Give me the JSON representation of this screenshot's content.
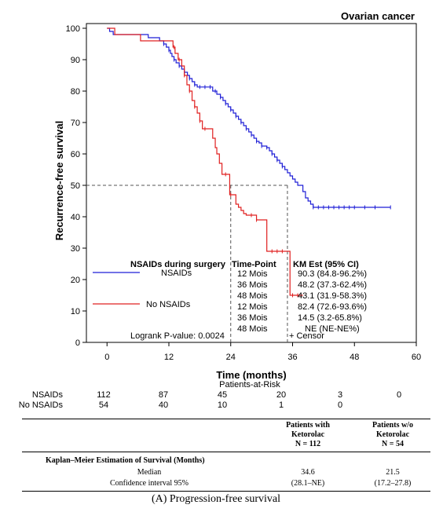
{
  "chart_data": {
    "type": "line",
    "subtype": "kaplan-meier-step",
    "title": "Ovarian cancer",
    "xlabel": "Time (months)",
    "ylabel": "Recurrence-free survival",
    "xlim": [
      -4,
      60
    ],
    "ylim": [
      0,
      100
    ],
    "x_ticks": [
      0,
      12,
      24,
      36,
      48,
      60
    ],
    "y_ticks": [
      0,
      10,
      20,
      30,
      40,
      50,
      60,
      70,
      80,
      90,
      100
    ],
    "grid": false,
    "series": [
      {
        "name": "NSAIDs",
        "color": "#1f1fd6",
        "points": [
          [
            0,
            100
          ],
          [
            0.5,
            99
          ],
          [
            1.2,
            98
          ],
          [
            8,
            97
          ],
          [
            10.2,
            96
          ],
          [
            11,
            95
          ],
          [
            11.5,
            94
          ],
          [
            12,
            93
          ],
          [
            12.3,
            92
          ],
          [
            12.6,
            91
          ],
          [
            13,
            90
          ],
          [
            13.4,
            89
          ],
          [
            14,
            88
          ],
          [
            14.5,
            87
          ],
          [
            15,
            86
          ],
          [
            15.6,
            85
          ],
          [
            16,
            84
          ],
          [
            16.5,
            83
          ],
          [
            17,
            82
          ],
          [
            17.5,
            81.3
          ],
          [
            20,
            81.3
          ],
          [
            20.5,
            80
          ],
          [
            21.3,
            79
          ],
          [
            22,
            78
          ],
          [
            22.5,
            77
          ],
          [
            23,
            76
          ],
          [
            23.5,
            75
          ],
          [
            24,
            74
          ],
          [
            24.5,
            73
          ],
          [
            25,
            72
          ],
          [
            25.5,
            71
          ],
          [
            26,
            70
          ],
          [
            26.5,
            69
          ],
          [
            27,
            68
          ],
          [
            27.5,
            67
          ],
          [
            28,
            66
          ],
          [
            28.5,
            65
          ],
          [
            29,
            64
          ],
          [
            29.5,
            63.5
          ],
          [
            30,
            62.5
          ],
          [
            31,
            62
          ],
          [
            31.5,
            61
          ],
          [
            32,
            60
          ],
          [
            32.5,
            59
          ],
          [
            33,
            58
          ],
          [
            33.5,
            57
          ],
          [
            34,
            56
          ],
          [
            34.5,
            55
          ],
          [
            35,
            54
          ],
          [
            35.5,
            53
          ],
          [
            36,
            52
          ],
          [
            36.5,
            51
          ],
          [
            37,
            50
          ],
          [
            38,
            48
          ],
          [
            38.5,
            46
          ],
          [
            39,
            45
          ],
          [
            39.5,
            44
          ],
          [
            40,
            43
          ],
          [
            55,
            43
          ]
        ]
      },
      {
        "name": "No NSAIDs",
        "color": "#e02020",
        "points": [
          [
            0,
            100
          ],
          [
            1.5,
            98
          ],
          [
            6,
            98
          ],
          [
            6.5,
            96
          ],
          [
            12.5,
            96
          ],
          [
            12.8,
            94
          ],
          [
            13.2,
            92
          ],
          [
            13.8,
            90
          ],
          [
            14.5,
            88
          ],
          [
            15,
            85
          ],
          [
            15.5,
            82
          ],
          [
            16,
            80
          ],
          [
            16.5,
            77
          ],
          [
            17,
            75
          ],
          [
            17.5,
            73
          ],
          [
            18,
            70.5
          ],
          [
            18.5,
            68
          ],
          [
            20,
            68
          ],
          [
            20.5,
            65
          ],
          [
            21,
            62
          ],
          [
            21.3,
            60
          ],
          [
            21.8,
            57
          ],
          [
            22.3,
            53.5
          ],
          [
            23.5,
            53.5
          ],
          [
            23.8,
            47
          ],
          [
            24.5,
            47
          ],
          [
            25,
            44
          ],
          [
            25.5,
            43
          ],
          [
            26,
            42
          ],
          [
            26.5,
            41
          ],
          [
            27,
            40.5
          ],
          [
            28,
            40.5
          ],
          [
            29,
            39
          ],
          [
            30.5,
            39
          ],
          [
            31,
            29
          ],
          [
            32,
            29
          ],
          [
            35,
            29
          ],
          [
            35.5,
            15
          ],
          [
            38,
            15
          ]
        ]
      }
    ],
    "censor_marks": {
      "NSAIDs_x": [
        11,
        12,
        13,
        14,
        15,
        16,
        17,
        18,
        19,
        20,
        21,
        22,
        23,
        24,
        25,
        26,
        27,
        28,
        29,
        30,
        31,
        32,
        33,
        34,
        40,
        41,
        42,
        43,
        44,
        45,
        46,
        47,
        48,
        50,
        52,
        55
      ],
      "No NSAIDs_x": [
        13,
        14,
        15,
        16,
        17,
        18,
        19,
        23,
        24,
        28,
        29,
        32,
        33,
        34,
        36,
        37
      ]
    },
    "reference_lines": {
      "y": 50,
      "x_nsaids": 35,
      "x_no_nsaids": 24
    }
  },
  "legend": {
    "header_group": "NSAIDs during surgery",
    "header_timepoint": "Time-Point",
    "header_km": "KM Est (95% CI)",
    "rows": [
      {
        "group": "NSAIDs",
        "timepoint": "12 Mois",
        "km": "90.3 (84.8-96.2%)"
      },
      {
        "group": "",
        "timepoint": "36 Mois",
        "km": "48.2 (37.3-62.4%)"
      },
      {
        "group": "",
        "timepoint": "48 Mois",
        "km": "43.1 (31.9-58.3%)"
      },
      {
        "group": "No NSAIDs",
        "timepoint": "12 Mois",
        "km": "82.4 (72.6-93.6%)"
      },
      {
        "group": "",
        "timepoint": "36 Mois",
        "km": "14.5 (3.2-65.8%)"
      },
      {
        "group": "",
        "timepoint": "48 Mois",
        "km": "NE (NE-NE%)"
      }
    ],
    "logrank": "Logrank P-value: 0.0024",
    "censor_label": "+ Censor"
  },
  "risk_table": {
    "title": "Patients-at-Risk",
    "rows": [
      {
        "label": "NSAIDs",
        "values": [
          "112",
          "87",
          "45",
          "20",
          "3",
          "0"
        ]
      },
      {
        "label": "No NSAIDs",
        "values": [
          "54",
          "40",
          "10",
          "1",
          "0",
          ""
        ]
      }
    ]
  },
  "summary_table": {
    "col1_header": [
      "Patients with",
      "Ketorolac",
      "N = 112"
    ],
    "col2_header": [
      "Patients w/o",
      "Ketorolac",
      "N = 54"
    ],
    "section": "Kaplan–Meier Estimation of Survival (Months)",
    "rows": [
      {
        "label": "Median",
        "v1": "34.6",
        "v2": "21.5"
      },
      {
        "label": "Confidence interval 95%",
        "v1": "(28.1–NE)",
        "v2": "(17.2–27.8)"
      }
    ]
  },
  "caption": "(A) Progression-free survival"
}
